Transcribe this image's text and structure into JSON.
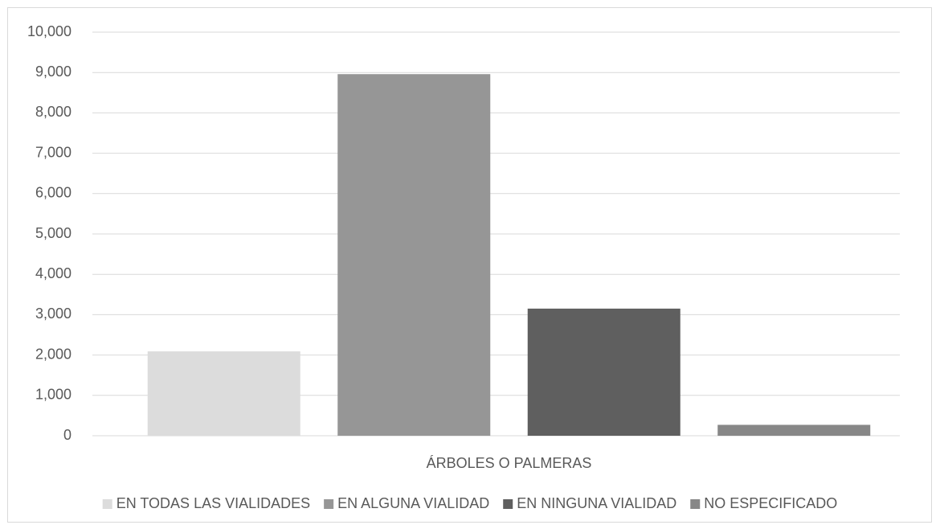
{
  "chart_data": {
    "type": "bar",
    "categories": [
      "ÁRBOLES O PALMERAS"
    ],
    "series": [
      {
        "name": "EN TODAS LAS VIALIDADES",
        "color": "#dcdcdc",
        "values": [
          2090
        ]
      },
      {
        "name": "EN ALGUNA VIALIDAD",
        "color": "#969696",
        "values": [
          8960
        ]
      },
      {
        "name": "EN NINGUNA VIALIDAD",
        "color": "#5f5f5f",
        "values": [
          3150
        ]
      },
      {
        "name": "NO ESPECIFICADO",
        "color": "#878787",
        "values": [
          270
        ]
      }
    ],
    "ylim": [
      0,
      10000
    ],
    "yticks": [
      0,
      {
        "value": 1000,
        "label": "1,000"
      },
      {
        "value": 2000,
        "label": "2,000"
      },
      {
        "value": 3000,
        "label": "3,000"
      },
      {
        "value": 4000,
        "label": "4,000"
      },
      {
        "value": 5000,
        "label": "5,000"
      },
      {
        "value": 6000,
        "label": "6,000"
      },
      {
        "value": 7000,
        "label": "7,000"
      },
      {
        "value": 8000,
        "label": "8,000"
      },
      {
        "value": 9000,
        "label": "9,000"
      },
      {
        "value": 10000,
        "label": "10,000"
      }
    ],
    "grid": true,
    "legend": "bottom"
  }
}
